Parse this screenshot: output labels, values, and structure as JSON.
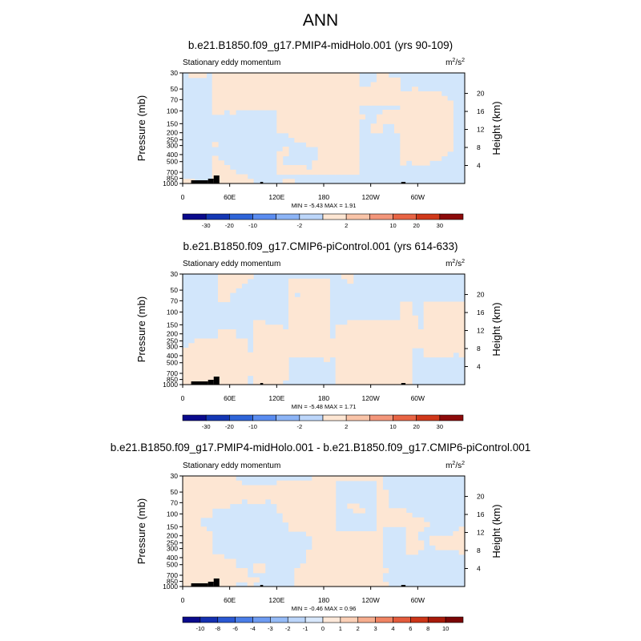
{
  "page": {
    "title": "ANN"
  },
  "chart_data": [
    {
      "type": "heatmap",
      "title": "b.e21.B1850.f09_g17.PMIP4-midHolo.001 (yrs 90-109)",
      "subtitle": "Stationary eddy momentum",
      "units_main": "m",
      "units_sup1": "2",
      "units_mid": "/s",
      "units_sup2": "2",
      "ylabel_left": "Pressure (mb)",
      "ylabel_right": "Height (km)",
      "x_ticks": [
        "0",
        "60E",
        "120E",
        "180",
        "120W",
        "60W"
      ],
      "y_ticks_left": [
        "30",
        "50",
        "70",
        "100",
        "150",
        "200",
        "250",
        "300",
        "400",
        "500",
        "700",
        "850",
        "1000"
      ],
      "y_ticks_right": [
        "20",
        "16",
        "12",
        "8",
        "4"
      ],
      "min_max_text": "MIN = -5.43   MAX = 1.91",
      "min": -5.43,
      "max": 1.91,
      "colorbar_labels": [
        "-30",
        "-20",
        "-10",
        "-2",
        "2",
        "10",
        "20",
        "30"
      ]
    },
    {
      "type": "heatmap",
      "title": "b.e21.B1850.f09_g17.CMIP6-piControl.001 (yrs 614-633)",
      "subtitle": "Stationary eddy momentum",
      "units_main": "m",
      "units_sup1": "2",
      "units_mid": "/s",
      "units_sup2": "2",
      "ylabel_left": "Pressure (mb)",
      "ylabel_right": "Height (km)",
      "x_ticks": [
        "0",
        "60E",
        "120E",
        "180",
        "120W",
        "60W"
      ],
      "y_ticks_left": [
        "30",
        "50",
        "70",
        "100",
        "150",
        "200",
        "250",
        "300",
        "400",
        "500",
        "700",
        "850",
        "1000"
      ],
      "y_ticks_right": [
        "20",
        "16",
        "12",
        "8",
        "4"
      ],
      "min_max_text": "MIN = -5.48   MAX = 1.71",
      "min": -5.48,
      "max": 1.71,
      "colorbar_labels": [
        "-30",
        "-20",
        "-10",
        "-2",
        "2",
        "10",
        "20",
        "30"
      ]
    },
    {
      "type": "heatmap",
      "title": "b.e21.B1850.f09_g17.PMIP4-midHolo.001 - b.e21.B1850.f09_g17.CMIP6-piControl.001",
      "subtitle": "Stationary eddy momentum",
      "units_main": "m",
      "units_sup1": "2",
      "units_mid": "/s",
      "units_sup2": "2",
      "ylabel_left": "Pressure (mb)",
      "ylabel_right": "Height (km)",
      "x_ticks": [
        "0",
        "60E",
        "120E",
        "180",
        "120W",
        "60W"
      ],
      "y_ticks_left": [
        "30",
        "50",
        "70",
        "100",
        "150",
        "200",
        "250",
        "300",
        "400",
        "500",
        "700",
        "850",
        "1000"
      ],
      "y_ticks_right": [
        "20",
        "16",
        "12",
        "8",
        "4"
      ],
      "min_max_text": "MIN = -0.46   MAX = 0.96",
      "min": -0.46,
      "max": 0.96,
      "colorbar_labels": [
        "-10",
        "-8",
        "-6",
        "-4",
        "-3",
        "-2",
        "-1",
        "0",
        "1",
        "2",
        "3",
        "4",
        "6",
        "8",
        "10"
      ]
    }
  ],
  "colors": {
    "negative_fill": "#d2e6fb",
    "positive_fill": "#fde6d3",
    "colorbar_12": [
      "#0a0a8c",
      "#1437b4",
      "#2e64d8",
      "#5a8cf0",
      "#8cb4f6",
      "#bcd6fa",
      "#fde6d3",
      "#f9c4a8",
      "#f3967a",
      "#e86444",
      "#d0381a",
      "#8c0a0a"
    ],
    "colorbar_16": [
      "#0a0a8c",
      "#1430b0",
      "#2a58d2",
      "#4a7ee8",
      "#6e9cf2",
      "#95bbf7",
      "#bbd5fa",
      "#d8e8fc",
      "#fde9da",
      "#fbd0b7",
      "#f6ad8e",
      "#f08463",
      "#e35b3c",
      "#cc3518",
      "#a81a0a",
      "#7a0505"
    ]
  }
}
